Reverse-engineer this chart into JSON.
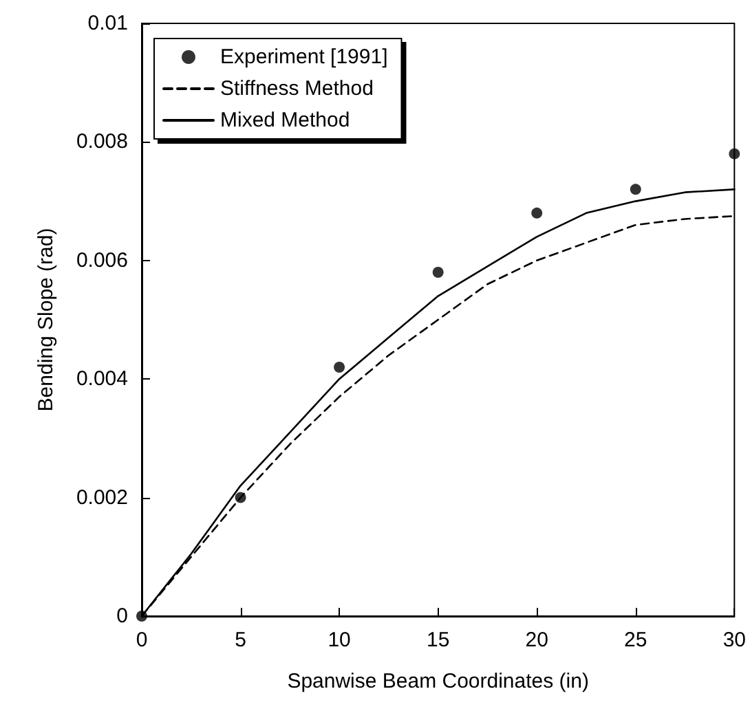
{
  "chart_data": {
    "type": "line",
    "xlabel": "Spanwise Beam Coordinates (in)",
    "ylabel": "Bending Slope (rad)",
    "xlim": [
      0,
      30
    ],
    "xticks": [
      0,
      5,
      10,
      15,
      20,
      25,
      30
    ],
    "ylim": [
      0,
      0.01
    ],
    "yticks": [
      0,
      0.002,
      0.004,
      0.006,
      0.008,
      0.01
    ],
    "grid": false,
    "legend": "top left",
    "series": [
      {
        "name": "Experiment [1991]",
        "type": "scatter",
        "marker": "circle",
        "color": "#000000",
        "x": [
          0,
          5,
          10,
          15,
          20,
          25,
          30
        ],
        "values": [
          0,
          0.002,
          0.0042,
          0.0058,
          0.0068,
          0.0072,
          0.0078
        ]
      },
      {
        "name": "Stiffness Method",
        "line_style": "dashed",
        "color": "#000000",
        "x": [
          0,
          2.5,
          5,
          7.5,
          10,
          12.5,
          15,
          17.5,
          20,
          22.5,
          25,
          27.5,
          30
        ],
        "values": [
          0,
          0.001,
          0.002,
          0.0029,
          0.0037,
          0.0044,
          0.005,
          0.0056,
          0.006,
          0.0063,
          0.0066,
          0.0067,
          0.00675
        ]
      },
      {
        "name": "Mixed Method",
        "line_style": "solid",
        "color": "#000000",
        "x": [
          0,
          2.5,
          5,
          7.5,
          10,
          12.5,
          15,
          17.5,
          20,
          22.5,
          25,
          27.5,
          30
        ],
        "values": [
          0,
          0.00105,
          0.0022,
          0.0031,
          0.004,
          0.0047,
          0.0054,
          0.0059,
          0.0064,
          0.0068,
          0.007,
          0.00715,
          0.0072
        ]
      }
    ]
  }
}
